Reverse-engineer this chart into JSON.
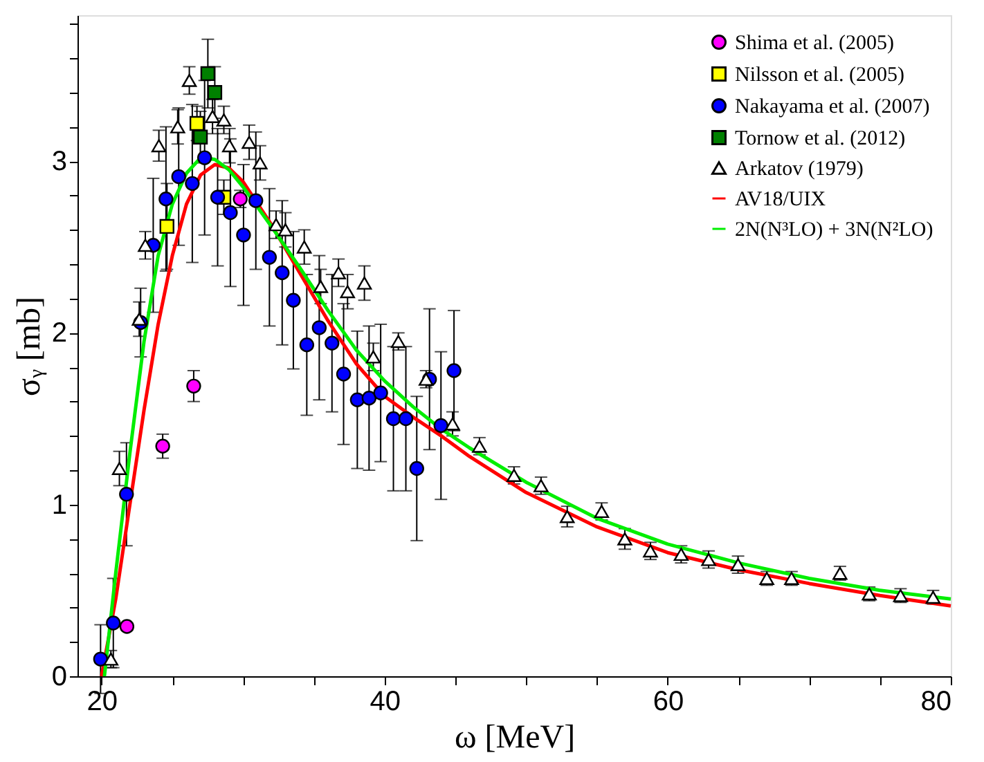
{
  "chart_data": {
    "type": "scatter",
    "xlabel": "ω [MeV]",
    "ylabel": "σᵧ [mb]",
    "xlim": [
      18.3,
      80
    ],
    "ylim": [
      0,
      3.85
    ],
    "xticks": [
      20,
      {
        "value": 25,
        "label": null
      },
      {
        "value": 30,
        "label": null
      },
      {
        "value": 35,
        "label": null
      },
      40,
      {
        "value": 45,
        "label": null
      },
      {
        "value": 50,
        "label": null
      },
      {
        "value": 55,
        "label": null
      },
      60,
      {
        "value": 65,
        "label": null
      },
      {
        "value": 70,
        "label": null
      },
      {
        "value": 75,
        "label": null
      },
      80
    ],
    "yticks": [
      0,
      {
        "value": 0.2,
        "label": null
      },
      {
        "value": 0.4,
        "label": null
      },
      {
        "value": 0.6,
        "label": null
      },
      {
        "value": 0.8,
        "label": null
      },
      1,
      {
        "value": 1.2,
        "label": null
      },
      {
        "value": 1.4,
        "label": null
      },
      {
        "value": 1.6,
        "label": null
      },
      {
        "value": 1.8,
        "label": null
      },
      2,
      {
        "value": 2.2,
        "label": null
      },
      {
        "value": 2.4,
        "label": null
      },
      {
        "value": 2.6,
        "label": null
      },
      {
        "value": 2.8,
        "label": null
      },
      3,
      {
        "value": 3.2,
        "label": null
      },
      {
        "value": 3.4,
        "label": null
      },
      {
        "value": 3.6,
        "label": null
      },
      {
        "value": 3.8,
        "label": null
      }
    ],
    "grid": false,
    "legend": "top right",
    "series": [
      {
        "name": "Shima et al. (2005)",
        "marker": "circle",
        "color": "#ff00ff",
        "x": [
          21.79,
          24.32,
          26.51,
          29.8
        ],
        "values": [
          0.29,
          1.34,
          1.69,
          2.78
        ],
        "errors": [
          0.02,
          0.07,
          0.09,
          0.05
        ]
      },
      {
        "name": "Nilsson et al. (2005)",
        "marker": "square",
        "color": "#ffff00",
        "x": [
          24.62,
          26.74,
          28.64
        ],
        "values": [
          2.62,
          3.22,
          2.79
        ],
        "errors": [
          0.25,
          0.1,
          0.1
        ]
      },
      {
        "name": "Nakayama et al. (2007)",
        "marker": "circle",
        "color": "#0000ff",
        "x": [
          19.93,
          20.83,
          21.76,
          22.76,
          23.65,
          24.55,
          25.45,
          26.41,
          27.28,
          28.2,
          29.1,
          30.03,
          30.9,
          31.86,
          32.76,
          33.55,
          34.5,
          35.38,
          36.28,
          37.1,
          38.07,
          38.9,
          39.72,
          40.62,
          41.5,
          42.27,
          43.17,
          43.98,
          44.9
        ],
        "values": [
          0.1,
          0.31,
          1.06,
          2.06,
          2.51,
          2.78,
          2.91,
          2.87,
          3.02,
          2.79,
          2.7,
          2.57,
          2.77,
          2.44,
          2.35,
          2.19,
          1.93,
          2.03,
          1.94,
          1.76,
          1.61,
          1.62,
          1.65,
          1.5,
          1.5,
          1.21,
          1.73,
          1.46,
          1.78
        ],
        "errors": [
          0.2,
          0.26,
          0.3,
          0.2,
          0.39,
          0.42,
          0.4,
          0.46,
          0.45,
          0.4,
          0.43,
          0.41,
          0.4,
          0.4,
          0.42,
          0.4,
          0.41,
          0.42,
          0.4,
          0.41,
          0.4,
          0.42,
          0.4,
          0.42,
          0.42,
          0.42,
          0.41,
          0.43,
          0.35
        ]
      },
      {
        "name": "Tornow et al. (2012)",
        "marker": "square",
        "color": "#008000",
        "x": [
          26.98,
          27.51,
          28.0
        ],
        "values": [
          3.14,
          3.51,
          3.4
        ],
        "errors": [
          0.15,
          0.2,
          0.15
        ]
      },
      {
        "name": "Arkatov (1979)",
        "marker": "triangle",
        "color": "#ffffff",
        "x": [
          20.66,
          21.26,
          22.66,
          23.09,
          24.05,
          25.38,
          26.2,
          27.84,
          28.64,
          29.04,
          30.43,
          31.2,
          32.33,
          32.99,
          34.32,
          35.48,
          36.74,
          37.38,
          38.57,
          39.2,
          40.97,
          42.93,
          44.8,
          46.7,
          49.14,
          51.05,
          52.9,
          55.33,
          56.97,
          58.78,
          60.95,
          62.89,
          64.97,
          67.0,
          68.75,
          72.17,
          74.24,
          76.45,
          78.75
        ],
        "values": [
          0.1,
          1.21,
          2.08,
          2.51,
          3.09,
          3.2,
          3.47,
          3.26,
          3.24,
          3.09,
          3.11,
          2.99,
          2.63,
          2.6,
          2.5,
          2.27,
          2.35,
          2.24,
          2.29,
          1.86,
          1.95,
          1.73,
          1.47,
          1.34,
          1.17,
          1.11,
          0.93,
          0.96,
          0.8,
          0.73,
          0.71,
          0.68,
          0.65,
          0.57,
          0.57,
          0.6,
          0.48,
          0.47,
          0.46
        ],
        "errors": [
          0.05,
          0.1,
          0.1,
          0.08,
          0.09,
          0.1,
          0.08,
          0.1,
          0.08,
          0.1,
          0.1,
          0.1,
          0.08,
          0.1,
          0.1,
          0.1,
          0.08,
          0.1,
          0.1,
          0.08,
          0.05,
          0.05,
          0.07,
          0.05,
          0.05,
          0.05,
          0.06,
          0.05,
          0.06,
          0.05,
          0.05,
          0.05,
          0.05,
          0.04,
          0.04,
          0.04,
          0.04,
          0.04,
          0.04
        ]
      },
      {
        "name": "AV18/UIX",
        "type": "line",
        "line_style": "solid",
        "color": "#ff0000",
        "x": [
          20.0,
          21,
          22,
          23,
          24,
          25,
          26,
          27,
          28,
          29,
          30,
          32,
          34,
          36,
          38,
          40,
          42,
          44,
          46,
          50,
          55,
          60,
          65,
          70,
          75,
          80
        ],
        "values": [
          0,
          0.45,
          1.0,
          1.55,
          2.05,
          2.45,
          2.75,
          2.92,
          2.98,
          2.96,
          2.88,
          2.63,
          2.35,
          2.07,
          1.82,
          1.63,
          1.51,
          1.4,
          1.28,
          1.07,
          0.87,
          0.72,
          0.62,
          0.54,
          0.47,
          0.41
        ]
      },
      {
        "name": "2N(N³LO) + 3N(N²LO)",
        "type": "line",
        "line_style": "solid",
        "color": "#00ee00",
        "x": [
          20.2,
          21,
          22,
          23,
          24,
          25,
          26,
          27,
          28,
          29,
          30,
          32,
          34,
          36,
          38,
          40,
          42,
          44,
          46,
          50,
          55,
          60,
          65,
          70,
          75,
          80
        ],
        "values": [
          0,
          0.6,
          1.3,
          1.95,
          2.45,
          2.75,
          2.93,
          3.02,
          3.01,
          2.95,
          2.85,
          2.62,
          2.38,
          2.13,
          1.9,
          1.72,
          1.57,
          1.44,
          1.33,
          1.13,
          0.92,
          0.77,
          0.66,
          0.57,
          0.5,
          0.45
        ]
      }
    ]
  }
}
